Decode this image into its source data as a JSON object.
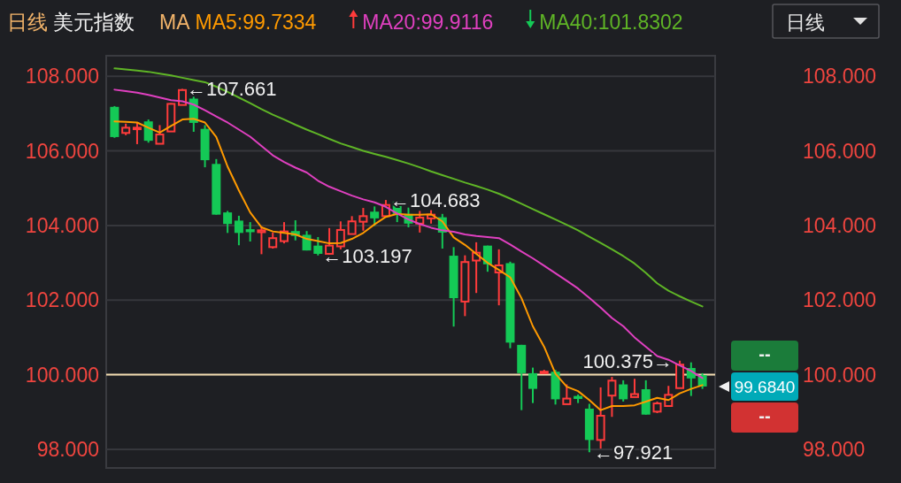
{
  "chart_data": {
    "type": "candlestick",
    "title": "美元指数",
    "subtitle": "日线",
    "legend_title": "MA",
    "legend": "top",
    "grid": "y",
    "categories": [
      null,
      null,
      null,
      null,
      null,
      null,
      null,
      null,
      null,
      null,
      null,
      null,
      null,
      null,
      null,
      null,
      null,
      null,
      null,
      null,
      null,
      null,
      null,
      null,
      null,
      null,
      null,
      null,
      null,
      null,
      null,
      null,
      null,
      null,
      null,
      null,
      null,
      null,
      null,
      null,
      null,
      null,
      null,
      null,
      null,
      null,
      null,
      null,
      null,
      null,
      null,
      null,
      null
    ],
    "ohlc": [
      [
        107.18,
        107.2,
        106.35,
        106.37
      ],
      [
        106.48,
        106.73,
        106.42,
        106.62
      ],
      [
        106.58,
        106.76,
        106.18,
        106.62
      ],
      [
        106.79,
        106.84,
        106.22,
        106.27
      ],
      [
        106.19,
        106.69,
        106.19,
        106.44
      ],
      [
        106.52,
        107.28,
        106.52,
        107.26
      ],
      [
        107.23,
        107.661,
        107.23,
        107.63
      ],
      [
        107.4,
        107.45,
        106.51,
        106.75
      ],
      [
        106.59,
        106.69,
        105.56,
        105.75
      ],
      [
        105.65,
        105.78,
        104.29,
        104.29
      ],
      [
        104.35,
        104.39,
        103.8,
        104.04
      ],
      [
        104.13,
        104.26,
        103.47,
        103.8
      ],
      [
        103.9,
        104.09,
        103.57,
        103.82
      ],
      [
        103.82,
        103.98,
        103.23,
        103.87
      ],
      [
        103.42,
        103.81,
        103.38,
        103.66
      ],
      [
        103.58,
        104.09,
        103.52,
        103.84
      ],
      [
        103.85,
        104.14,
        103.6,
        103.72
      ],
      [
        103.75,
        103.85,
        103.33,
        103.33
      ],
      [
        103.46,
        103.69,
        103.197,
        103.24
      ],
      [
        103.24,
        103.93,
        103.22,
        103.46
      ],
      [
        103.44,
        104.11,
        103.36,
        103.88
      ],
      [
        103.77,
        104.25,
        103.77,
        104.11
      ],
      [
        104.1,
        104.47,
        103.86,
        104.25
      ],
      [
        104.37,
        104.51,
        103.99,
        104.19
      ],
      [
        104.25,
        104.683,
        104.25,
        104.55
      ],
      [
        104.64,
        104.66,
        104.09,
        104.31
      ],
      [
        104.31,
        104.48,
        103.95,
        104.05
      ],
      [
        104.05,
        104.39,
        103.81,
        104.21
      ],
      [
        104.19,
        104.41,
        104.05,
        104.29
      ],
      [
        104.22,
        104.31,
        103.38,
        103.81
      ],
      [
        103.19,
        103.42,
        101.29,
        102.05
      ],
      [
        101.96,
        103.2,
        101.57,
        103.02
      ],
      [
        103.06,
        103.55,
        102.19,
        103.27
      ],
      [
        103.46,
        103.46,
        102.76,
        102.96
      ],
      [
        102.74,
        103.36,
        101.86,
        102.93
      ],
      [
        102.99,
        103.03,
        100.71,
        100.86
      ],
      [
        100.8,
        100.8,
        99.05,
        100.04
      ],
      [
        100.04,
        100.19,
        99.24,
        99.62
      ],
      [
        100.04,
        100.13,
        100.04,
        100.08
      ],
      [
        100.08,
        100.13,
        99.2,
        99.34
      ],
      [
        99.21,
        99.74,
        99.21,
        99.36
      ],
      [
        99.43,
        99.47,
        99.24,
        99.35
      ],
      [
        99.09,
        99.22,
        97.921,
        98.25
      ],
      [
        98.25,
        99.66,
        98.02,
        98.9
      ],
      [
        99.44,
        99.94,
        98.87,
        99.84
      ],
      [
        99.74,
        99.85,
        99.28,
        99.34
      ],
      [
        99.4,
        99.89,
        99.4,
        99.48
      ],
      [
        99.61,
        99.85,
        98.93,
        98.93
      ],
      [
        99.01,
        99.28,
        98.97,
        99.23
      ],
      [
        99.16,
        99.7,
        99.16,
        99.46
      ],
      [
        99.64,
        100.375,
        99.64,
        100.27
      ],
      [
        100.18,
        100.33,
        99.43,
        99.9
      ],
      [
        99.99,
        100.04,
        99.62,
        99.684
      ]
    ],
    "series": [
      {
        "name": "MA5:99.7334",
        "type": "line",
        "color": "#ff9a00",
        "values": [
          106.79,
          106.78,
          106.76,
          106.62,
          106.49,
          106.67,
          106.84,
          106.86,
          106.76,
          106.37,
          105.58,
          104.94,
          104.35,
          103.95,
          103.84,
          103.8,
          103.76,
          103.64,
          103.58,
          103.52,
          103.53,
          103.64,
          103.8,
          104.03,
          104.23,
          104.31,
          104.29,
          104.29,
          104.3,
          104.11,
          103.68,
          103.48,
          103.24,
          103.0,
          102.81,
          102.61,
          102.05,
          101.3,
          100.75,
          100.03,
          99.68,
          99.56,
          99.32,
          99.05,
          99.16,
          99.16,
          99.18,
          99.28,
          99.38,
          99.32,
          99.5,
          99.62,
          99.72
        ]
      },
      {
        "name": "MA20:99.9116",
        "type": "line",
        "color": "#e040c0",
        "values": [
          107.64,
          107.6,
          107.56,
          107.5,
          107.43,
          107.36,
          107.33,
          107.24,
          107.09,
          106.92,
          106.76,
          106.57,
          106.38,
          106.13,
          105.88,
          105.7,
          105.55,
          105.42,
          105.2,
          105.04,
          104.92,
          104.8,
          104.7,
          104.62,
          104.5,
          104.32,
          104.16,
          104.04,
          103.94,
          103.87,
          103.83,
          103.76,
          103.72,
          103.69,
          103.66,
          103.49,
          103.3,
          103.12,
          102.92,
          102.72,
          102.52,
          102.31,
          102.06,
          101.8,
          101.52,
          101.3,
          101.0,
          100.75,
          100.5,
          100.4,
          100.25,
          100.1,
          99.91
        ]
      },
      {
        "name": "MA40:101.8302",
        "type": "line",
        "color": "#5fb526",
        "values": [
          108.21,
          108.18,
          108.15,
          108.12,
          108.07,
          108.02,
          107.96,
          107.9,
          107.84,
          107.72,
          107.58,
          107.43,
          107.28,
          107.12,
          106.97,
          106.84,
          106.7,
          106.57,
          106.45,
          106.32,
          106.2,
          106.1,
          106.0,
          105.92,
          105.84,
          105.75,
          105.66,
          105.56,
          105.45,
          105.35,
          105.25,
          105.15,
          105.06,
          104.96,
          104.85,
          104.72,
          104.58,
          104.44,
          104.3,
          104.16,
          104.02,
          103.87,
          103.7,
          103.53,
          103.36,
          103.18,
          102.98,
          102.73,
          102.45,
          102.25,
          102.1,
          101.96,
          101.83
        ]
      }
    ],
    "ylim": [
      97.5,
      108.55
    ],
    "yticks": [
      {
        "value": 98,
        "label": "98.000"
      },
      {
        "value": 100,
        "label": "100.000"
      },
      {
        "value": 102,
        "label": "102.000"
      },
      {
        "value": 104,
        "label": "104.000"
      },
      {
        "value": 106,
        "label": "106.000"
      },
      {
        "value": 108,
        "label": "108.000"
      }
    ],
    "y2lim": [
      97.5,
      108.55
    ],
    "y2ticks": [
      {
        "value": 98,
        "label": "98.000"
      },
      {
        "value": 100,
        "label": "100.000"
      },
      {
        "value": 102,
        "label": "102.000"
      },
      {
        "value": 104,
        "label": "104.000"
      },
      {
        "value": 106,
        "label": "106.000"
      },
      {
        "value": 108,
        "label": "108.000"
      }
    ],
    "ref_lines": [
      {
        "axis": "y",
        "value": 100,
        "color": "#f2dcb0"
      }
    ],
    "annotations": [
      {
        "text": "←107.661",
        "y": 107.661
      },
      "←104.683",
      "←103.197",
      "100.375→",
      "←97.921",
      "99.6840",
      "日线",
      "--",
      "--"
    ]
  }
}
